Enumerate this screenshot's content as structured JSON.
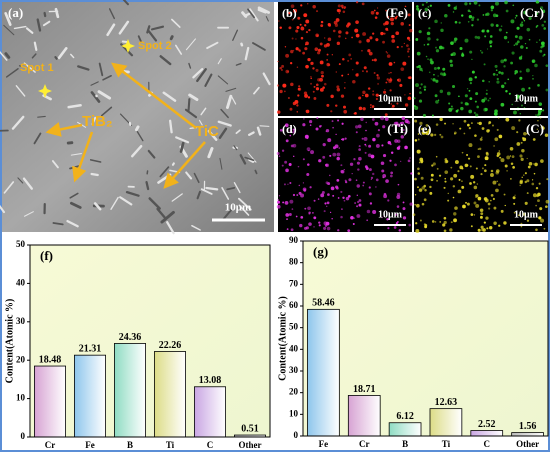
{
  "images": {
    "sem": {
      "label": "(a)",
      "annotations": [
        "Spot 1",
        "Spot 2",
        "TiB₂",
        "TiC"
      ],
      "scale_bar": "10μm"
    },
    "maps": [
      {
        "label": "(b)",
        "element": "(Fe)",
        "scale_bar": "10μm",
        "color": "#ff2a1a"
      },
      {
        "label": "(c)",
        "element": "(Cr)",
        "scale_bar": "10μm",
        "color": "#2fd12f"
      },
      {
        "label": "(d)",
        "element": "(Ti)",
        "scale_bar": "10μm",
        "color": "#e030e0"
      },
      {
        "label": "(e)",
        "element": "(C)",
        "scale_bar": "10μm",
        "color": "#e6d92a"
      }
    ]
  },
  "chart_data": [
    {
      "type": "bar",
      "title": "(f)",
      "y_label": "Content(Atomic %)",
      "categories": [
        "Cr",
        "Fe",
        "B",
        "Ti",
        "C",
        "Other"
      ],
      "values": [
        18.48,
        21.31,
        24.36,
        22.26,
        13.08,
        0.51
      ],
      "colors": [
        "#d7a3d3",
        "#8ec6ec",
        "#8fdcc3",
        "#dcdc86",
        "#c9a6e3",
        "#bdbdbd"
      ],
      "ylim": [
        0,
        50
      ],
      "yticks": [
        0,
        10,
        20,
        30,
        40,
        50
      ]
    },
    {
      "type": "bar",
      "title": "(g)",
      "y_label": "Content(Atomic %)",
      "categories": [
        "Fe",
        "Cr",
        "B",
        "Ti",
        "C",
        "Other"
      ],
      "values": [
        58.46,
        18.71,
        6.12,
        12.63,
        2.52,
        1.56
      ],
      "colors": [
        "#8ec6ec",
        "#d7a3d3",
        "#8fdcc3",
        "#dcdc86",
        "#c9a6e3",
        "#bdbdbd"
      ],
      "ylim": [
        0,
        90
      ],
      "yticks": [
        0,
        10,
        20,
        30,
        40,
        50,
        60,
        70,
        80,
        90
      ]
    }
  ]
}
